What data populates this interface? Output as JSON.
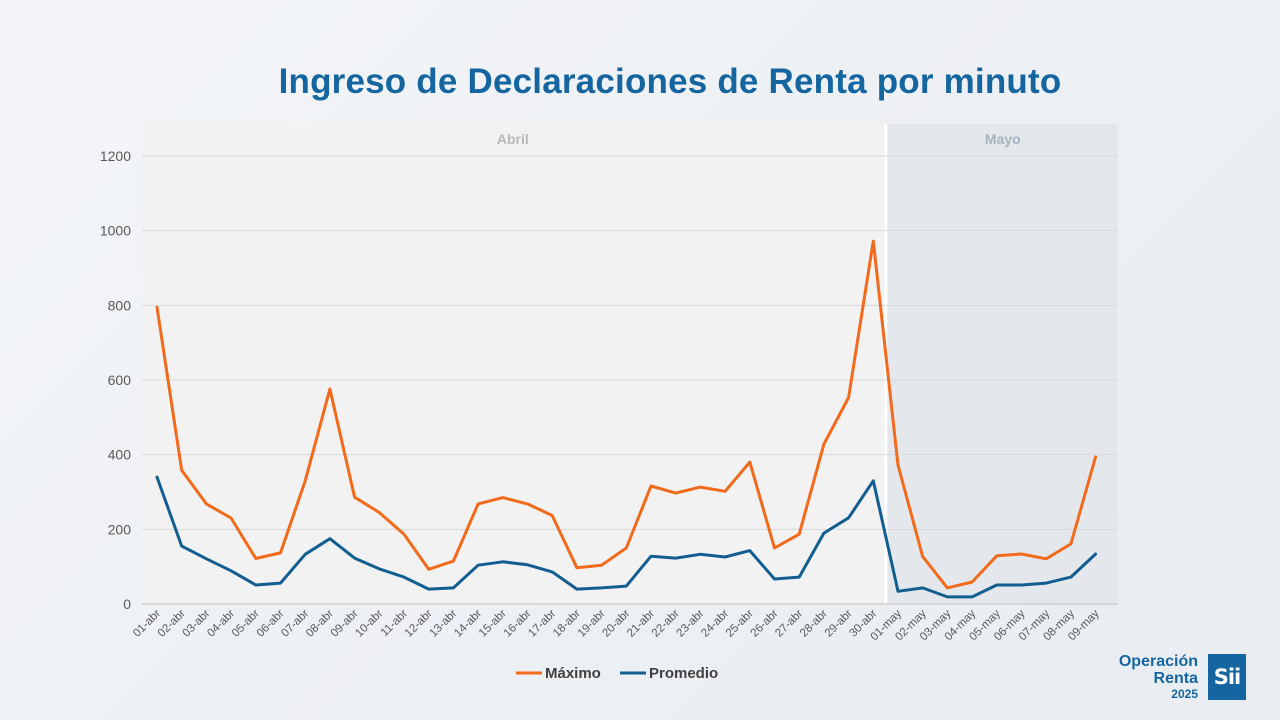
{
  "chart_data": {
    "type": "line",
    "title": "Ingreso de Declaraciones de Renta por minuto",
    "categories": [
      "01-abr",
      "02-abr",
      "03-abr",
      "04-abr",
      "05-abr",
      "06-abr",
      "07-abr",
      "08-abr",
      "09-abr",
      "10-abr",
      "11-abr",
      "12-abr",
      "13-abr",
      "14-abr",
      "15-abr",
      "16-abr",
      "17-abr",
      "18-abr",
      "19-abr",
      "20-abr",
      "21-abr",
      "22-abr",
      "23-abr",
      "24-abr",
      "25-abr",
      "26-abr",
      "27-abr",
      "28-abr",
      "29-abr",
      "30-abr",
      "01-may",
      "02-may",
      "03-may",
      "04-may",
      "05-may",
      "06-may",
      "07-may",
      "08-may",
      "09-may"
    ],
    "series": [
      {
        "name": "Máximo",
        "color": "#f26a1b",
        "values": [
          795,
          358,
          268,
          230,
          122,
          137,
          330,
          576,
          286,
          245,
          187,
          93,
          115,
          268,
          285,
          268,
          237,
          97,
          104,
          150,
          316,
          297,
          313,
          302,
          380,
          150,
          187,
          428,
          553,
          972,
          372,
          127,
          43,
          59,
          129,
          134,
          121,
          161,
          394
        ]
      },
      {
        "name": "Promedio",
        "color": "#125e91",
        "values": [
          340,
          155,
          121,
          89,
          51,
          56,
          133,
          175,
          123,
          94,
          72,
          40,
          43,
          104,
          113,
          105,
          86,
          40,
          43,
          48,
          128,
          123,
          133,
          126,
          143,
          67,
          72,
          190,
          231,
          330,
          34,
          43,
          19,
          19,
          51,
          51,
          56,
          72,
          134
        ]
      }
    ],
    "ylim": [
      0,
      1200
    ],
    "yticks": [
      0,
      200,
      400,
      600,
      800,
      1000,
      1200
    ],
    "grid": true,
    "legend": "bottom-center",
    "bands": [
      {
        "label": "Abril",
        "start": 0,
        "end": 29,
        "color": "#f2f2f2",
        "label_color": "#b8b8b8"
      },
      {
        "label": "Mayo",
        "start": 30,
        "end": 38,
        "color": "#e4e8ed",
        "label_color": "#a8b2bf"
      }
    ]
  },
  "brand": {
    "line1": "Operación",
    "line2": "Renta",
    "year": "2025",
    "logo_text": "Sii"
  }
}
